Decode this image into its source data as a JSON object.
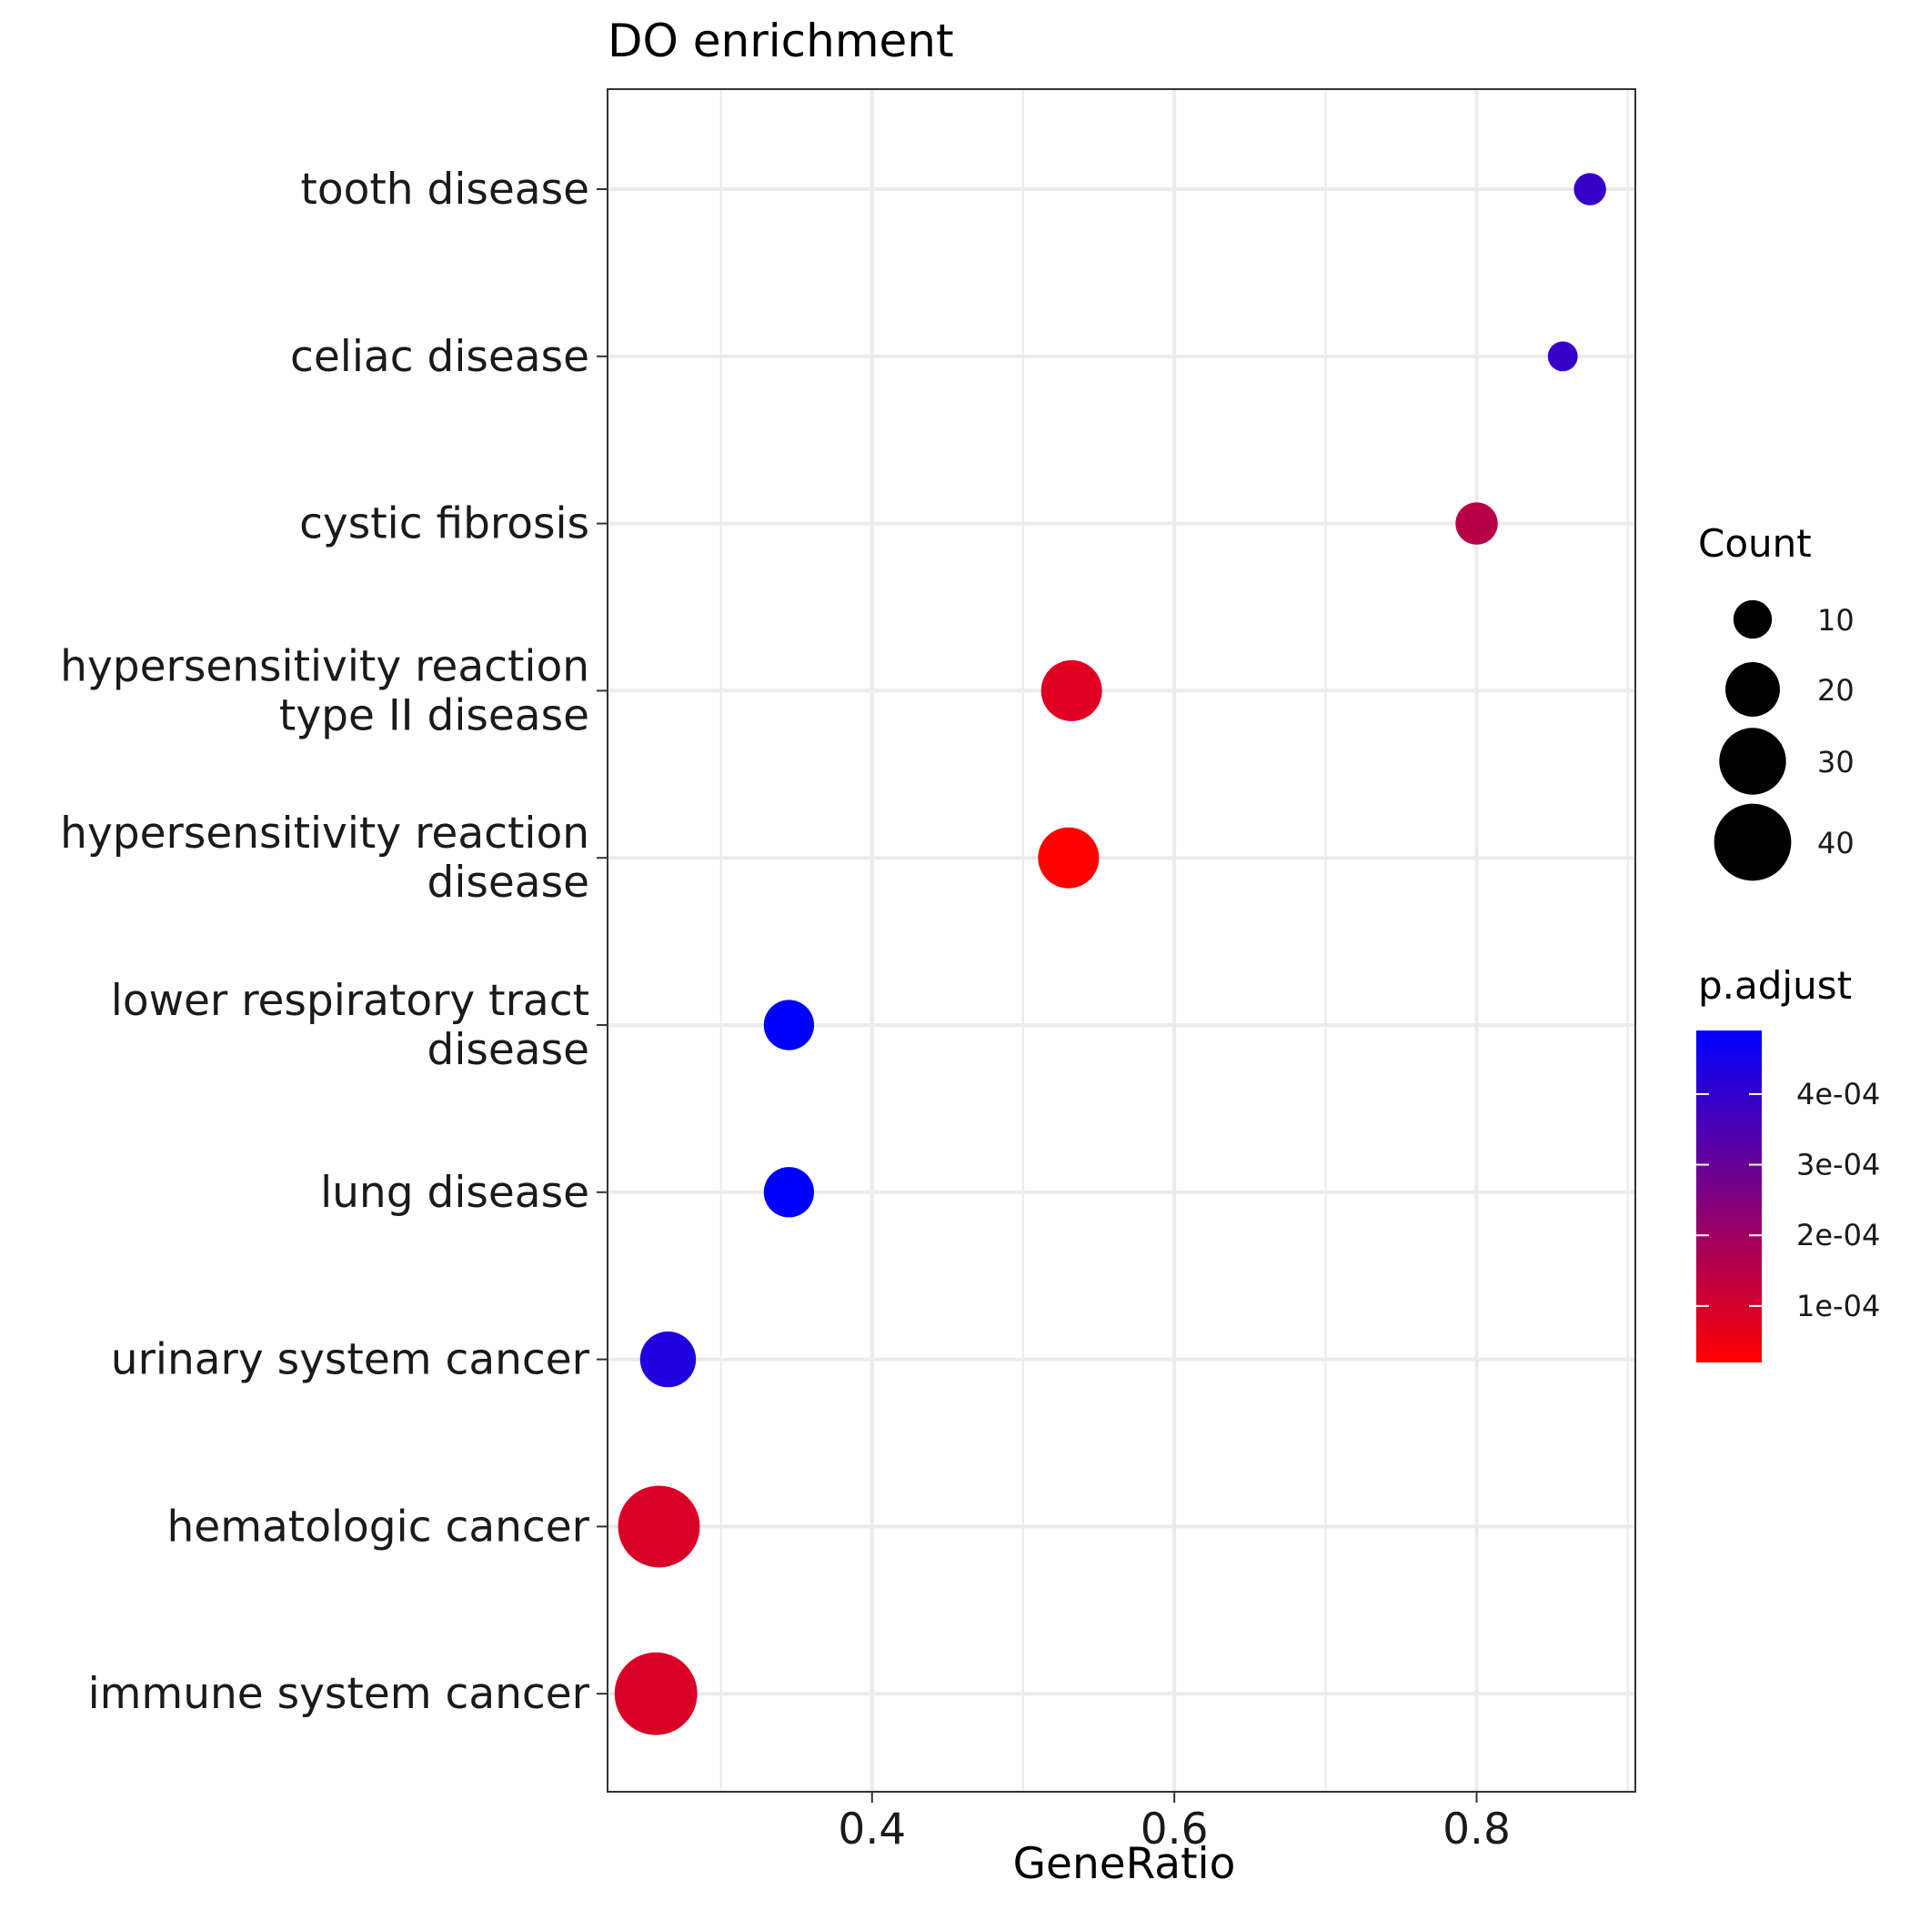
{
  "chart_data": {
    "type": "scatter",
    "title": "DO enrichment",
    "xlabel": "GeneRatio",
    "ylabel": "",
    "xlim": [
      0.225,
      0.905
    ],
    "xticks": [
      0.4,
      0.6,
      0.8
    ],
    "xtick_labels": [
      "0.4",
      "0.6",
      "0.8"
    ],
    "x_minor_ticks": [
      0.3,
      0.5,
      0.7,
      0.9
    ],
    "grid": true,
    "legend_position": "right",
    "categories": [
      "tooth disease",
      "celiac disease",
      "cystic fibrosis",
      "hypersensitivity reaction type II disease",
      "hypersensitivity reaction disease",
      "lower respiratory tract disease",
      "lung disease",
      "urinary system cancer",
      "hematologic cancer",
      "immune system cancer"
    ],
    "category_lines": [
      [
        "tooth disease"
      ],
      [
        "celiac disease"
      ],
      [
        "cystic fibrosis"
      ],
      [
        "hypersensitivity reaction",
        "type II disease"
      ],
      [
        "hypersensitivity reaction",
        "disease"
      ],
      [
        "lower respiratory tract",
        "disease"
      ],
      [
        "lung disease"
      ],
      [
        "urinary system cancer"
      ],
      [
        "hematologic cancer"
      ],
      [
        "immune system cancer"
      ]
    ],
    "points": [
      {
        "category": "tooth disease",
        "gene_ratio": 0.875,
        "count": 7,
        "p_adjust": 0.00039
      },
      {
        "category": "celiac disease",
        "gene_ratio": 0.857,
        "count": 6,
        "p_adjust": 0.00039
      },
      {
        "category": "cystic fibrosis",
        "gene_ratio": 0.8,
        "count": 12,
        "p_adjust": 0.00015
      },
      {
        "category": "hypersensitivity reaction type II disease",
        "gene_ratio": 0.532,
        "count": 25,
        "p_adjust": 8e-05
      },
      {
        "category": "hypersensitivity reaction disease",
        "gene_ratio": 0.53,
        "count": 25,
        "p_adjust": 2e-05
      },
      {
        "category": "lower respiratory tract disease",
        "gene_ratio": 0.345,
        "count": 17,
        "p_adjust": 0.00049
      },
      {
        "category": "lung disease",
        "gene_ratio": 0.345,
        "count": 17,
        "p_adjust": 0.00049
      },
      {
        "category": "urinary system cancer",
        "gene_ratio": 0.265,
        "count": 21,
        "p_adjust": 0.00043
      },
      {
        "category": "hematologic cancer",
        "gene_ratio": 0.259,
        "count": 45,
        "p_adjust": 9e-05
      },
      {
        "category": "immune system cancer",
        "gene_ratio": 0.257,
        "count": 46,
        "p_adjust": 9e-05
      }
    ],
    "size_legend": {
      "title": "Count",
      "values": [
        10,
        20,
        30,
        40
      ],
      "labels": [
        "10",
        "20",
        "30",
        "40"
      ]
    },
    "color_legend": {
      "title": "p.adjust",
      "range": [
        2e-05,
        0.00049
      ],
      "low_color": "#ff0000",
      "high_color": "#0000ff",
      "ticks": [
        0.0001,
        0.0002,
        0.0003,
        0.0004
      ],
      "tick_labels": [
        "1e-04",
        "2e-04",
        "3e-04",
        "4e-04"
      ]
    }
  }
}
